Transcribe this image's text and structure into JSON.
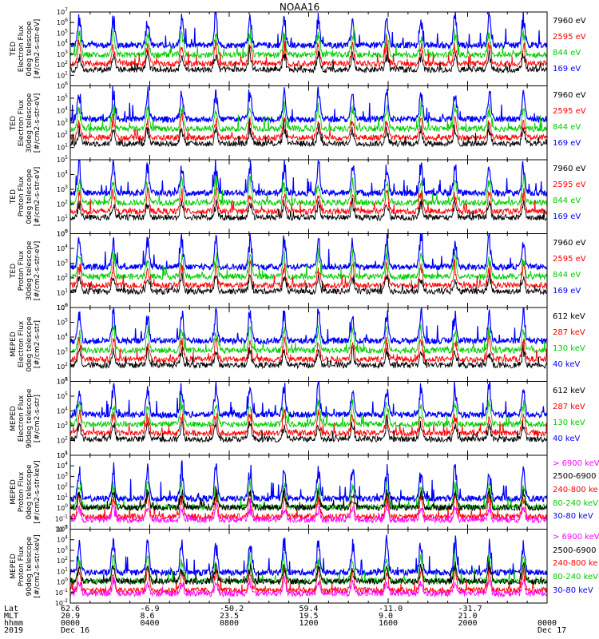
{
  "title": "NOAA16",
  "footer": {
    "row_labels": [
      "Lat",
      "MLT",
      "hhmm",
      "2019"
    ],
    "ticks": [
      {
        "lat": "62.6",
        "mlt": "20.9",
        "hhmm": "0000",
        "date": "Dec 16"
      },
      {
        "lat": "-6.9",
        "mlt": "8.6",
        "hhmm": "0400",
        "date": ""
      },
      {
        "lat": "-50.2",
        "mlt": "23.5",
        "hhmm": "0800",
        "date": ""
      },
      {
        "lat": "59.4",
        "mlt": "19.5",
        "hhmm": "1200",
        "date": ""
      },
      {
        "lat": "-11.0",
        "mlt": "9.0",
        "hhmm": "1600",
        "date": ""
      },
      {
        "lat": "-31.7",
        "mlt": "21.0",
        "hhmm": "2000",
        "date": ""
      },
      {
        "lat": "",
        "mlt": "",
        "hhmm": "0000",
        "date": "Dec 17"
      }
    ]
  },
  "chart_data": [
    {
      "type": "line",
      "ylabel_lines": [
        "TED",
        "Electron Flux",
        "0deg telescope",
        "[#/cm2-s-str-eV]"
      ],
      "ytick_exps": [
        1,
        2,
        3,
        4,
        5,
        6,
        7
      ],
      "ylim_log10": [
        0,
        7
      ],
      "legend": [
        {
          "name": "7960 eV",
          "color": "#000000"
        },
        {
          "name": "2595 eV",
          "color": "#ff0000"
        },
        {
          "name": "844 eV",
          "color": "#00cc00"
        },
        {
          "name": "169 eV",
          "color": "#0000ff"
        }
      ],
      "x_hours": [
        0,
        24
      ]
    },
    {
      "type": "line",
      "ylabel_lines": [
        "TED",
        "Electron Flux",
        "30deg telescope",
        "[#/cm2-s-str-eV]"
      ],
      "ytick_exps": [
        1,
        2,
        3,
        4,
        5,
        6
      ],
      "ylim_log10": [
        0,
        6
      ],
      "legend": [
        {
          "name": "7960 eV",
          "color": "#000000"
        },
        {
          "name": "2595 eV",
          "color": "#ff0000"
        },
        {
          "name": "844 eV",
          "color": "#00cc00"
        },
        {
          "name": "169 eV",
          "color": "#0000ff"
        }
      ],
      "x_hours": [
        0,
        24
      ]
    },
    {
      "type": "line",
      "ylabel_lines": [
        "TED",
        "Proton Flux",
        "0deg telescope",
        "[#/cm2-s-str-eV]"
      ],
      "ytick_exps": [
        0,
        1,
        2,
        3,
        4,
        5
      ],
      "ylim_log10": [
        0,
        5
      ],
      "legend": [
        {
          "name": "7960 eV",
          "color": "#000000"
        },
        {
          "name": "2595 eV",
          "color": "#ff0000"
        },
        {
          "name": "844 eV",
          "color": "#00cc00"
        },
        {
          "name": "169 eV",
          "color": "#0000ff"
        }
      ],
      "x_hours": [
        0,
        24
      ]
    },
    {
      "type": "line",
      "ylabel_lines": [
        "TED",
        "Proton Flux",
        "30deg telescope",
        "[#/cm2-s-str-eV]"
      ],
      "ytick_exps": [
        0,
        1,
        2,
        3,
        4,
        5
      ],
      "ylim_log10": [
        0,
        5
      ],
      "legend": [
        {
          "name": "7960 eV",
          "color": "#000000"
        },
        {
          "name": "2595 eV",
          "color": "#ff0000"
        },
        {
          "name": "844 eV",
          "color": "#00cc00"
        },
        {
          "name": "169 eV",
          "color": "#0000ff"
        }
      ],
      "x_hours": [
        0,
        24
      ]
    },
    {
      "type": "line",
      "ylabel_lines": [
        "MEPED",
        "Electron Flux",
        "0deg telescope",
        "[#/cm2-s-str]"
      ],
      "ytick_exps": [
        1,
        2,
        3,
        4,
        5,
        6
      ],
      "ylim_log10": [
        1,
        6
      ],
      "legend": [
        {
          "name": "612 keV",
          "color": "#000000"
        },
        {
          "name": "287 keV",
          "color": "#ff0000"
        },
        {
          "name": "130 keV",
          "color": "#00cc00"
        },
        {
          "name": "40 keV",
          "color": "#0000ff"
        }
      ],
      "x_hours": [
        0,
        24
      ]
    },
    {
      "type": "line",
      "ylabel_lines": [
        "MEPED",
        "Electron Flux",
        "90deg telescope",
        "[#/cm2-s-str]"
      ],
      "ytick_exps": [
        1,
        2,
        3,
        4,
        5,
        6
      ],
      "ylim_log10": [
        1,
        6
      ],
      "legend": [
        {
          "name": "612 keV",
          "color": "#000000"
        },
        {
          "name": "287 keV",
          "color": "#ff0000"
        },
        {
          "name": "130 keV",
          "color": "#00cc00"
        },
        {
          "name": "40 keV",
          "color": "#0000ff"
        }
      ],
      "x_hours": [
        0,
        24
      ]
    },
    {
      "type": "line",
      "ylabel_lines": [
        "MEPED",
        "Proton Flux",
        "0deg telescope",
        "[#/cm2-s-str-keV]"
      ],
      "ytick_exps": [
        -2,
        -1,
        0,
        1,
        2,
        3,
        4,
        5
      ],
      "ylim_log10": [
        -2,
        5
      ],
      "legend": [
        {
          "name": "> 6900 keV",
          "color": "#ff00ff"
        },
        {
          "name": "2500-6900",
          "color": "#000000"
        },
        {
          "name": "240-800 ke",
          "color": "#ff0000"
        },
        {
          "name": "80-240 keV",
          "color": "#00cc00"
        },
        {
          "name": "30-80 keV",
          "color": "#0000ff"
        }
      ],
      "x_hours": [
        0,
        24
      ]
    },
    {
      "type": "line",
      "ylabel_lines": [
        "MEPED",
        "Proton Flux",
        "90deg telescope",
        "[#/cm2-s-str-keV]"
      ],
      "ytick_exps": [
        -2,
        -1,
        0,
        1,
        2,
        3,
        4,
        5
      ],
      "ylim_log10": [
        -2,
        5
      ],
      "legend": [
        {
          "name": "> 6900 keV",
          "color": "#ff00ff"
        },
        {
          "name": "2500-6900",
          "color": "#000000"
        },
        {
          "name": "240-800 ke",
          "color": "#ff0000"
        },
        {
          "name": "80-240 keV",
          "color": "#00cc00"
        },
        {
          "name": "30-80 keV",
          "color": "#0000ff"
        }
      ],
      "x_hours": [
        0,
        24
      ]
    }
  ]
}
